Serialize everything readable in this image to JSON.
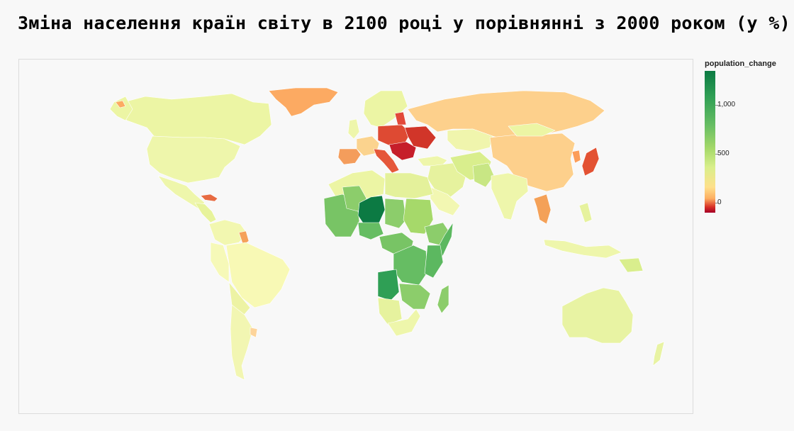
{
  "title": "Зміна населення країн світу в 2100 році у порівнянні з 2000 роком (у %)",
  "legend": {
    "title": "population_change",
    "ticks": [
      {
        "label": "1,000",
        "value": 1000
      },
      {
        "label": "500",
        "value": 500
      },
      {
        "label": "0",
        "value": 0
      }
    ],
    "range": [
      -100,
      1350
    ],
    "colors": [
      "#a50026",
      "#d73027",
      "#fdae61",
      "#fee08b",
      "#d9ef8b",
      "#a6d96a",
      "#66bd63",
      "#2f9f55",
      "#0b7a43"
    ]
  },
  "chart_data": {
    "type": "choropleth",
    "variable": "population_change",
    "unit": "%",
    "regions": [
      {
        "name": "Niger",
        "value": 1300
      },
      {
        "name": "Angola",
        "value": 950
      },
      {
        "name": "Nigeria",
        "value": 600
      },
      {
        "name": "DR Congo",
        "value": 600
      },
      {
        "name": "Tanzania",
        "value": 650
      },
      {
        "name": "Somalia",
        "value": 700
      },
      {
        "name": "Mali",
        "value": 500
      },
      {
        "name": "Chad",
        "value": 550
      },
      {
        "name": "Madagascar",
        "value": 550
      },
      {
        "name": "Sudan",
        "value": 350
      },
      {
        "name": "Egypt",
        "value": 150
      },
      {
        "name": "South Africa",
        "value": 60
      },
      {
        "name": "USA",
        "value": 50
      },
      {
        "name": "Brazil",
        "value": 20
      },
      {
        "name": "India",
        "value": 40
      },
      {
        "name": "Australia",
        "value": 80
      },
      {
        "name": "Canada",
        "value": 60
      },
      {
        "name": "Russia",
        "value": -35
      },
      {
        "name": "China",
        "value": -30
      },
      {
        "name": "Japan",
        "value": -50
      },
      {
        "name": "Ukraine",
        "value": -55
      },
      {
        "name": "Italy",
        "value": -45
      },
      {
        "name": "Greenland",
        "value": -40
      },
      {
        "name": "Thailand",
        "value": -40
      }
    ]
  }
}
